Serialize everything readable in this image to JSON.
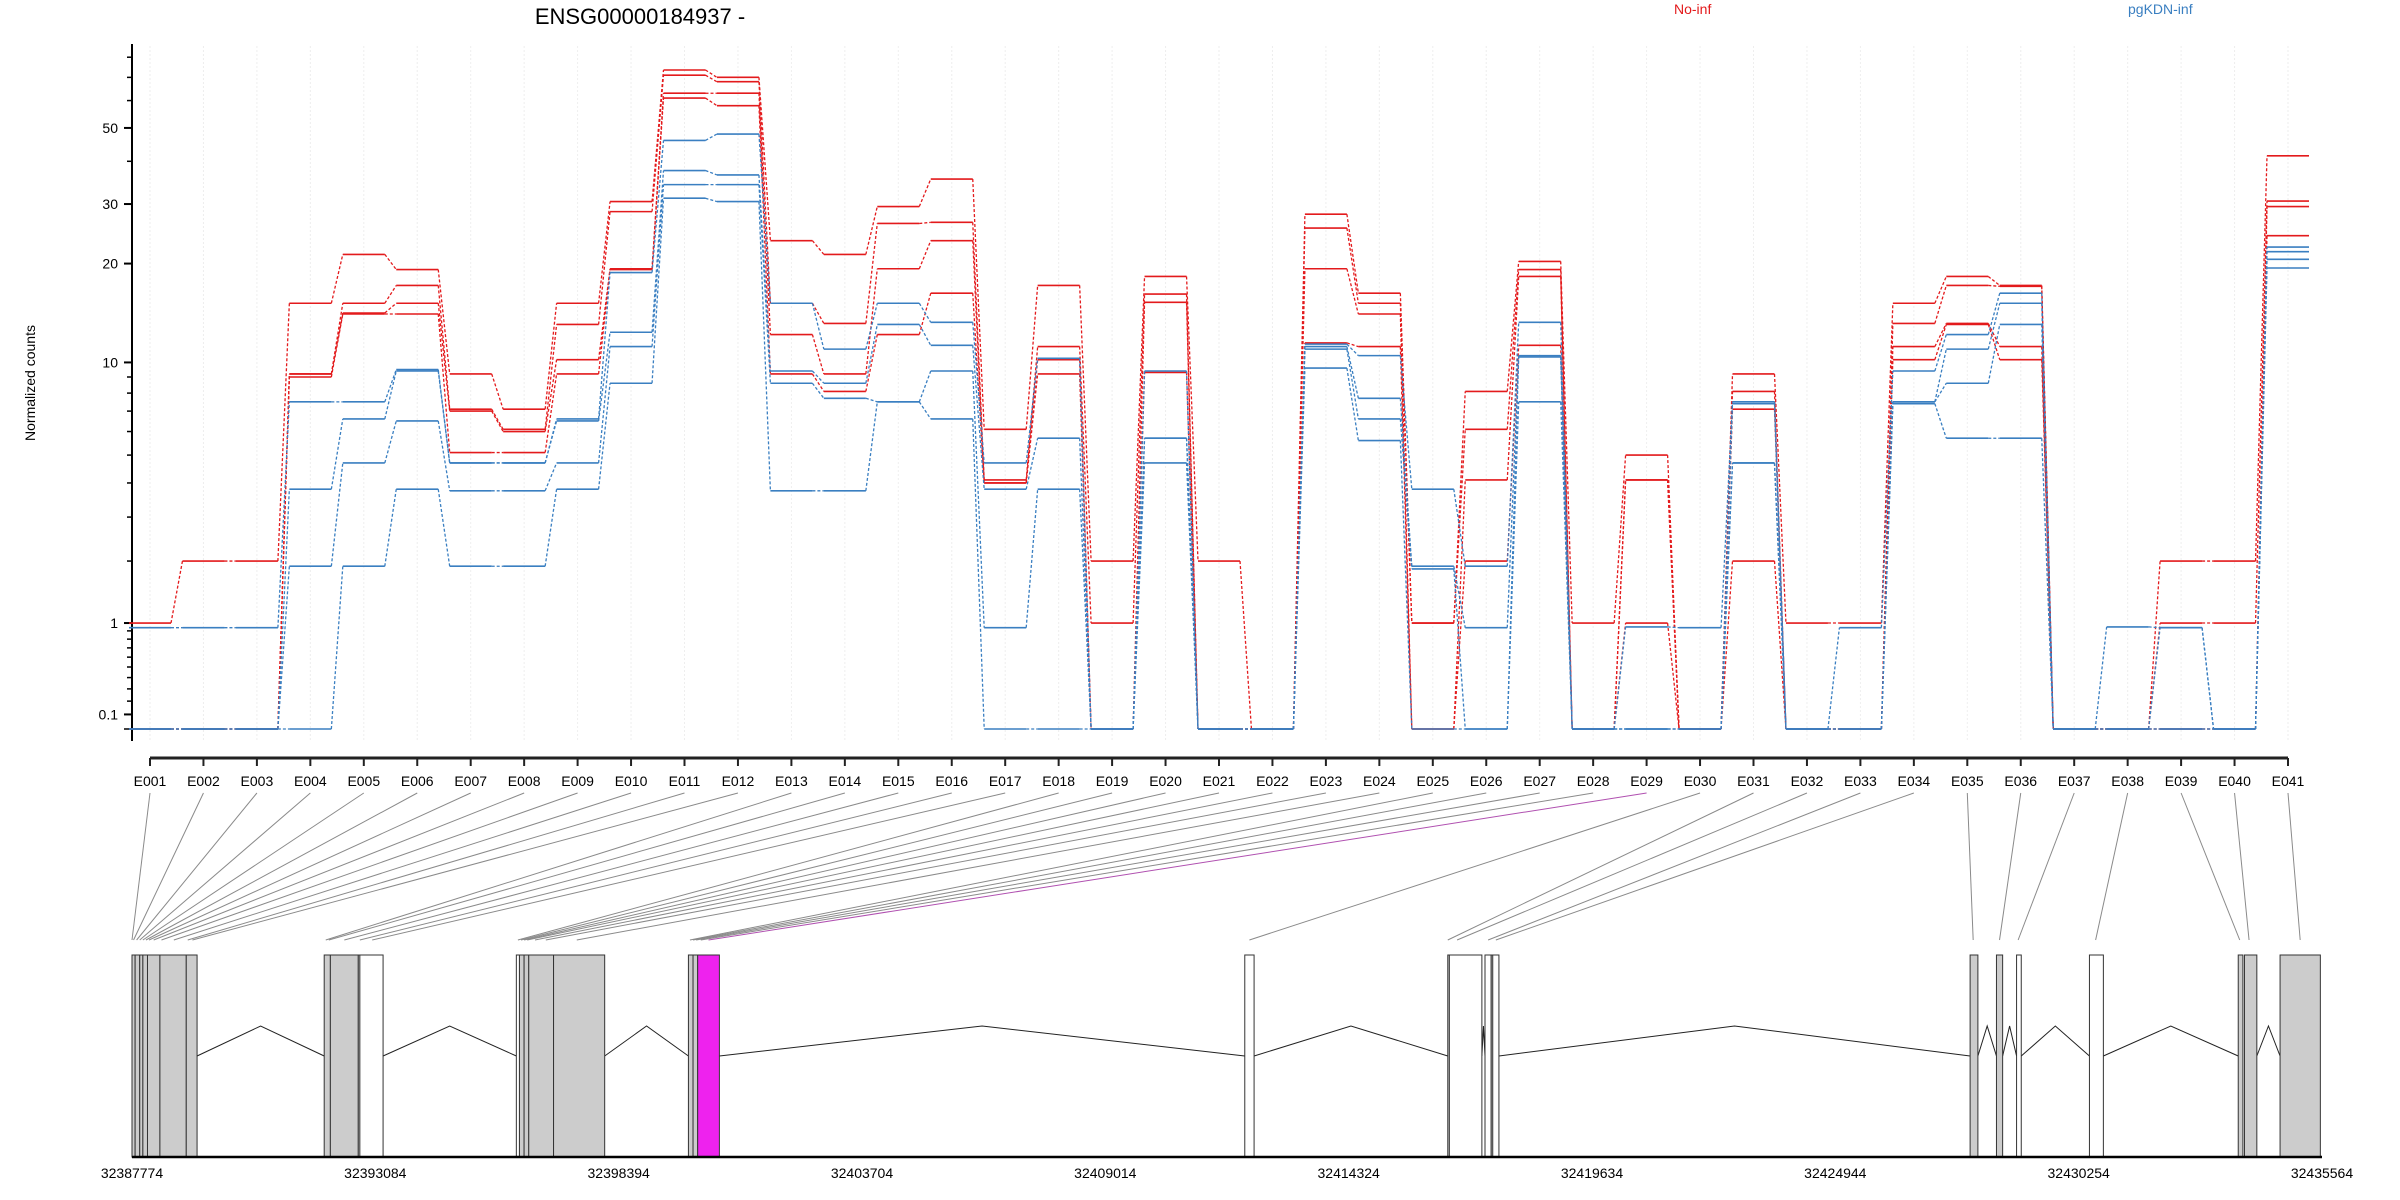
{
  "title": "ENSG00000184937 -",
  "legend": [
    {
      "label": "No-inf",
      "color": "#e31a1c"
    },
    {
      "label": "pgKDN-inf",
      "color": "#3a7fc1"
    }
  ],
  "chart_data": {
    "type": "line",
    "title": "ENSG00000184937 -",
    "xlabel": "",
    "ylabel": "Normalized counts",
    "yscale": "log10(y+1)",
    "yticks": [
      0.1,
      1,
      10,
      20,
      30,
      50
    ],
    "ylim": [
      0,
      87
    ],
    "grid": "vertical, faint",
    "legend_position": "top",
    "categories": [
      "E001",
      "E002",
      "E003",
      "E004",
      "E005",
      "E006",
      "E007",
      "E008",
      "E009",
      "E010",
      "E011",
      "E012",
      "E013",
      "E014",
      "E015",
      "E016",
      "E017",
      "E018",
      "E019",
      "E020",
      "E021",
      "E022",
      "E023",
      "E024",
      "E025",
      "E026",
      "E027",
      "E028",
      "E029",
      "E030",
      "E031",
      "E032",
      "E033",
      "E034",
      "E035",
      "E036",
      "E037",
      "E038",
      "E039",
      "E040",
      "E041"
    ],
    "series": [
      {
        "name": "No-inf 1",
        "group": "No-inf",
        "values": [
          1,
          2,
          2,
          15.2,
          21.3,
          19.2,
          9.2,
          7.1,
          15.2,
          30.5,
          73.5,
          70,
          23.4,
          21.3,
          29.5,
          35.5,
          6.1,
          17.2,
          2,
          18.3,
          2,
          0,
          28,
          16.3,
          1,
          8.1,
          20.3,
          1,
          5.0,
          0,
          9.2,
          1,
          1,
          15.2,
          18.3,
          17.2,
          0,
          0,
          2,
          2,
          41.5
        ]
      },
      {
        "name": "No-inf 2",
        "group": "No-inf",
        "values": [
          0,
          0,
          0,
          9.2,
          15.2,
          17.2,
          7.1,
          6.1,
          13.1,
          28.5,
          71,
          68,
          15.2,
          13.2,
          26.3,
          26.5,
          4.1,
          11.2,
          1,
          16.2,
          0,
          0,
          25.5,
          15.2,
          1,
          6.1,
          19.2,
          0,
          4.1,
          0,
          8.1,
          0,
          0,
          13.2,
          17.2,
          17.1,
          0,
          0,
          1,
          1,
          30.6
        ]
      },
      {
        "name": "No-inf 3",
        "group": "No-inf",
        "values": [
          0,
          0,
          0,
          9.2,
          14.2,
          15.2,
          7.0,
          6.0,
          10.2,
          19.3,
          63,
          63,
          12.2,
          9.2,
          19.3,
          23.4,
          4.0,
          10.2,
          0,
          15.3,
          0,
          0,
          19.3,
          14.1,
          0,
          4.1,
          18.3,
          0,
          4.1,
          0,
          7.1,
          0,
          0,
          11.2,
          13.2,
          11.2,
          0,
          0,
          0,
          0,
          29.5
        ]
      },
      {
        "name": "No-inf 4",
        "group": "No-inf",
        "values": [
          0,
          0,
          0,
          9.0,
          14.1,
          14.1,
          5.1,
          5.1,
          9.2,
          19.2,
          61,
          58,
          9.2,
          8.1,
          12.2,
          16.3,
          4.0,
          9.2,
          0,
          9.3,
          0,
          0,
          11.5,
          11.2,
          0,
          2.0,
          11.3,
          0,
          1.0,
          0,
          2.0,
          0,
          0,
          10.2,
          13.1,
          10.2,
          0,
          0,
          0,
          0,
          24.2
        ]
      },
      {
        "name": "pgKDN-inf 1",
        "group": "pgKDN-inf",
        "values": [
          0.94,
          0.94,
          0.94,
          7.5,
          7.5,
          9.5,
          4.7,
          4.7,
          6.6,
          18.8,
          46,
          48,
          15.2,
          11.0,
          15.2,
          13.3,
          4.7,
          10.3,
          0,
          9.4,
          0,
          0,
          11.4,
          10.5,
          3.8,
          1.9,
          13.3,
          0,
          0.95,
          0.94,
          7.5,
          0,
          0.94,
          9.4,
          12.2,
          16.3,
          0,
          0.95,
          0.94,
          0,
          22.4
        ]
      },
      {
        "name": "pgKDN-inf 2",
        "group": "pgKDN-inf",
        "values": [
          0,
          0,
          0,
          3.8,
          6.6,
          9.4,
          4.7,
          4.7,
          6.5,
          12.4,
          37.6,
          36.5,
          9.4,
          8.6,
          13.1,
          11.3,
          3.8,
          5.7,
          0,
          5.7,
          0,
          0,
          11.2,
          7.7,
          1.9,
          0.94,
          10.5,
          0,
          0,
          0,
          7.4,
          0,
          0,
          7.5,
          11.0,
          15.2,
          0,
          0,
          0.94,
          0,
          21.7
        ]
      },
      {
        "name": "pgKDN-inf 3",
        "group": "pgKDN-inf",
        "values": [
          0,
          0,
          0,
          1.9,
          4.7,
          6.5,
          3.75,
          3.75,
          4.7,
          11.2,
          34.2,
          34.2,
          8.6,
          7.7,
          7.5,
          9.4,
          0.94,
          3.8,
          0,
          5.7,
          0,
          0,
          11.0,
          6.6,
          1.85,
          0,
          10.4,
          0,
          0,
          0,
          4.7,
          0,
          0,
          7.5,
          8.6,
          13.1,
          0,
          0,
          0,
          0,
          20.6
        ]
      },
      {
        "name": "pgKDN-inf 4",
        "group": "pgKDN-inf",
        "values": [
          0,
          0,
          0,
          0,
          1.9,
          3.8,
          1.9,
          1.9,
          3.8,
          8.6,
          31.2,
          30.5,
          3.75,
          3.75,
          7.5,
          6.6,
          0,
          0,
          0,
          4.7,
          0,
          0,
          9.6,
          5.6,
          0,
          0,
          7.5,
          0,
          0,
          0,
          4.7,
          0,
          0,
          7.4,
          5.7,
          5.7,
          0,
          0,
          0,
          0,
          19.4
        ]
      }
    ]
  },
  "gene_model": {
    "axis_ticks": [
      32387774,
      32393084,
      32398394,
      32403704,
      32409014,
      32414324,
      32419634,
      32424944,
      32430254,
      32435564
    ],
    "range": [
      32387774,
      32435564
    ],
    "highlighted_exon": "E029",
    "highlight_color": "#ee22ee",
    "exon_positions": [
      32387774,
      32387808,
      32387875,
      32387943,
      32388011,
      32388078,
      32388146,
      32388247,
      32388417,
      32388687,
      32388990,
      32389093,
      32392002,
      32392069,
      32392407,
      32392746,
      32393016,
      32396195,
      32396263,
      32396330,
      32396398,
      32396567,
      32396804,
      32397480,
      32399949,
      32400017,
      32400084,
      32400186,
      32400355,
      32412158,
      32416487,
      32416690,
      32417367,
      32417536,
      32427952,
      32428527,
      32428933,
      32430624,
      32433769,
      32433972,
      32435088
    ],
    "blocks": [
      {
        "start": 32387774,
        "end": 32387842,
        "fill": "grey"
      },
      {
        "start": 32387842,
        "end": 32387943,
        "fill": "grey"
      },
      {
        "start": 32387943,
        "end": 32388011,
        "fill": "grey"
      },
      {
        "start": 32388011,
        "end": 32388112,
        "fill": "grey"
      },
      {
        "start": 32388112,
        "end": 32388383,
        "fill": "grey"
      },
      {
        "start": 32388383,
        "end": 32388958,
        "fill": "grey"
      },
      {
        "start": 32388958,
        "end": 32389194,
        "fill": "grey"
      },
      {
        "start": 32391968,
        "end": 32392103,
        "fill": "grey"
      },
      {
        "start": 32392103,
        "end": 32392712,
        "fill": "grey"
      },
      {
        "start": 32392712,
        "end": 32392746,
        "fill": "grey"
      },
      {
        "start": 32392746,
        "end": 32393253,
        "fill": "white"
      },
      {
        "start": 32396161,
        "end": 32396229,
        "fill": "white"
      },
      {
        "start": 32396229,
        "end": 32396330,
        "fill": "grey"
      },
      {
        "start": 32396330,
        "end": 32396432,
        "fill": "grey"
      },
      {
        "start": 32396432,
        "end": 32396973,
        "fill": "grey"
      },
      {
        "start": 32396973,
        "end": 32398089,
        "fill": "grey"
      },
      {
        "start": 32399916,
        "end": 32400017,
        "fill": "grey"
      },
      {
        "start": 32400017,
        "end": 32400118,
        "fill": "grey"
      },
      {
        "start": 32400118,
        "end": 32400592,
        "fill": "highlight"
      },
      {
        "start": 32412057,
        "end": 32412260,
        "fill": "white"
      },
      {
        "start": 32416487,
        "end": 32416521,
        "fill": "grey"
      },
      {
        "start": 32416521,
        "end": 32417231,
        "fill": "white"
      },
      {
        "start": 32417299,
        "end": 32417434,
        "fill": "white"
      },
      {
        "start": 32417434,
        "end": 32417468,
        "fill": "grey"
      },
      {
        "start": 32417468,
        "end": 32417603,
        "fill": "white"
      },
      {
        "start": 32427885,
        "end": 32428055,
        "fill": "grey"
      },
      {
        "start": 32428460,
        "end": 32428595,
        "fill": "grey"
      },
      {
        "start": 32428899,
        "end": 32429001,
        "fill": "white"
      },
      {
        "start": 32430489,
        "end": 32430793,
        "fill": "white"
      },
      {
        "start": 32433736,
        "end": 32433838,
        "fill": "grey"
      },
      {
        "start": 32433872,
        "end": 32434142,
        "fill": "grey"
      },
      {
        "start": 32434649,
        "end": 32435528,
        "fill": "grey"
      }
    ]
  }
}
